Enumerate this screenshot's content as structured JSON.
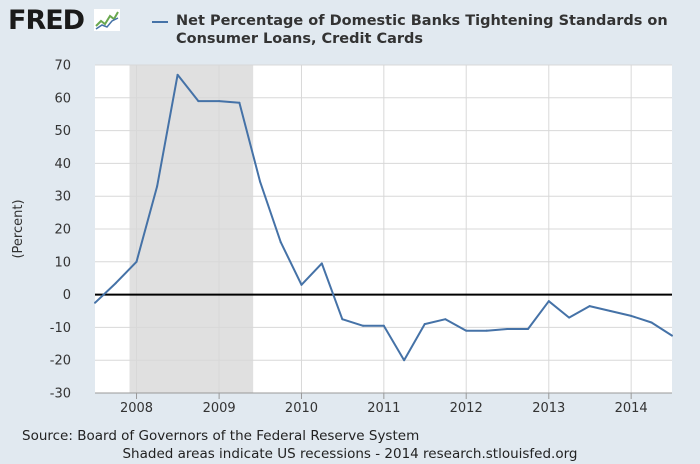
{
  "header": {
    "logo_text": "FRED",
    "legend_label": "Net Percentage of Domestic Banks Tightening Standards on Consumer Loans, Credit Cards"
  },
  "footer": {
    "source": "Source: Board of Governors of the Federal Reserve System",
    "note": "Shaded areas indicate US recessions - 2014 research.stlouisfed.org"
  },
  "colors": {
    "background": "#e1e9f0",
    "plot_background": "#ffffff",
    "series": "#4572a7",
    "recession": "#e0e0e0"
  },
  "chart_data": {
    "type": "line",
    "title": "",
    "xlabel": "",
    "ylabel": "(Percent)",
    "ylim": [
      -30,
      70
    ],
    "yticks": [
      -30,
      -20,
      -10,
      0,
      10,
      20,
      30,
      40,
      50,
      60,
      70
    ],
    "xlim": [
      "2007-07-01",
      "2014-07-01"
    ],
    "xticks": [
      "2008",
      "2009",
      "2010",
      "2011",
      "2012",
      "2013",
      "2014"
    ],
    "grid": true,
    "zero_line": true,
    "recessions": [
      {
        "start": "2007-12-01",
        "end": "2009-06-01"
      }
    ],
    "series": [
      {
        "name": "Net Percentage of Domestic Banks Tightening Standards on Consumer Loans, Credit Cards",
        "x": [
          "2007-07-01",
          "2007-10-01",
          "2008-01-01",
          "2008-04-01",
          "2008-07-01",
          "2008-10-01",
          "2009-01-01",
          "2009-04-01",
          "2009-07-01",
          "2009-10-01",
          "2010-01-01",
          "2010-04-01",
          "2010-07-01",
          "2010-10-01",
          "2011-01-01",
          "2011-04-01",
          "2011-07-01",
          "2011-10-01",
          "2012-01-01",
          "2012-04-01",
          "2012-07-01",
          "2012-10-01",
          "2013-01-01",
          "2013-04-01",
          "2013-07-01",
          "2013-10-01",
          "2014-01-01",
          "2014-04-01",
          "2014-07-01"
        ],
        "values": [
          -2.5,
          3.5,
          10,
          33,
          67,
          59,
          59,
          58.5,
          34.5,
          16,
          3,
          9.5,
          -7.5,
          -9.5,
          -9.5,
          -20,
          -9,
          -7.5,
          -11,
          -11,
          -10.5,
          -10.5,
          -2,
          -7,
          -3.5,
          -5,
          -6.5,
          -8.5,
          -12.5
        ]
      }
    ]
  }
}
